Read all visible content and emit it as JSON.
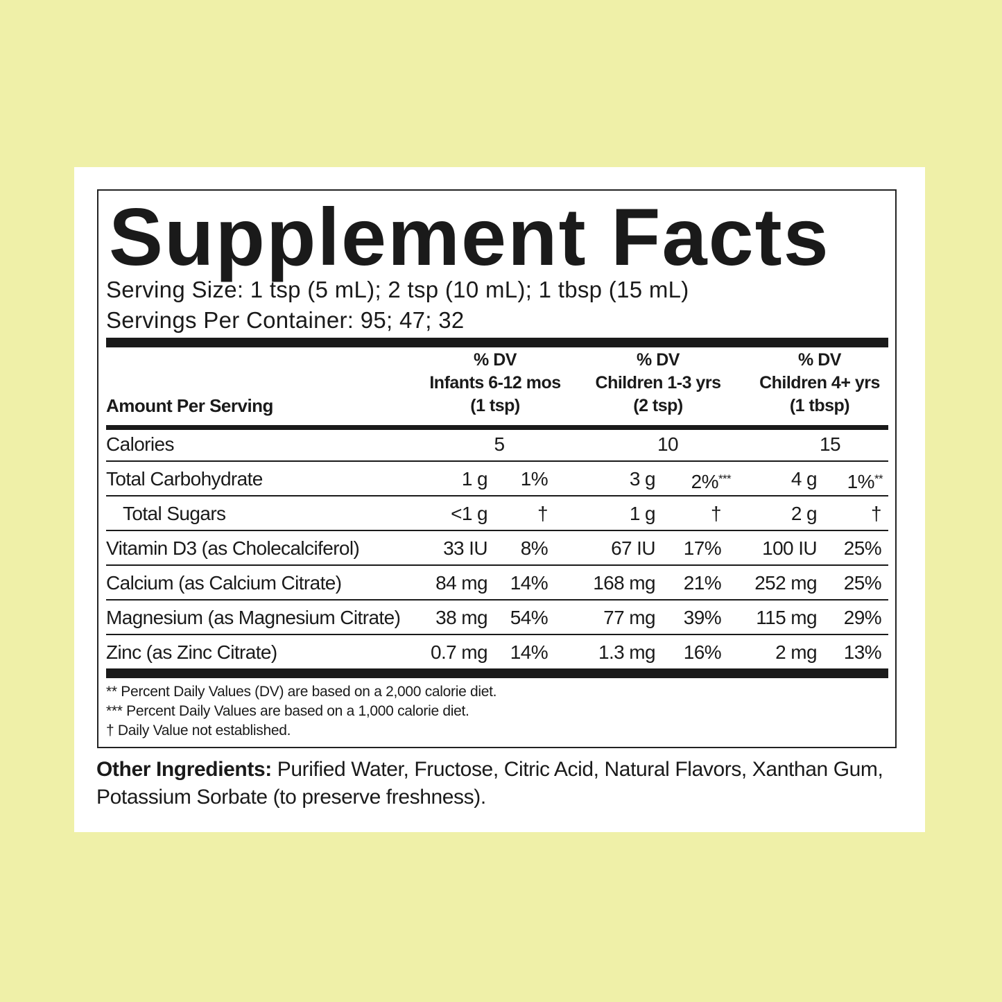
{
  "title": "Supplement Facts",
  "serving_size": "Serving Size: 1 tsp (5 mL); 2 tsp (10 mL); 1 tbsp (15 mL)",
  "servings_per_container": "Servings Per Container: 95; 47; 32",
  "header": {
    "amount_per_serving": "Amount Per Serving",
    "columns": [
      {
        "dv": "% DV",
        "group": "Infants 6-12 mos",
        "serving": "(1 tsp)"
      },
      {
        "dv": "% DV",
        "group": "Children 1-3 yrs",
        "serving": "(2 tsp)"
      },
      {
        "dv": "% DV",
        "group": "Children 4+ yrs",
        "serving": "(1 tbsp)"
      }
    ]
  },
  "calories": {
    "label": "Calories",
    "values": [
      "5",
      "10",
      "15"
    ]
  },
  "rows": [
    {
      "label": "Total Carbohydrate",
      "indent": false,
      "cells": [
        [
          "1 g",
          "1%",
          ""
        ],
        [
          "3 g",
          "2%",
          "***"
        ],
        [
          "4 g",
          "1%",
          "**"
        ]
      ]
    },
    {
      "label": "Total Sugars",
      "indent": true,
      "cells": [
        [
          "<1 g",
          "†",
          ""
        ],
        [
          "1 g",
          "†",
          ""
        ],
        [
          "2 g",
          "†",
          ""
        ]
      ]
    },
    {
      "label": "Vitamin D3 (as Cholecalciferol)",
      "indent": false,
      "cells": [
        [
          "33 IU",
          "8%",
          ""
        ],
        [
          "67 IU",
          "17%",
          ""
        ],
        [
          "100 IU",
          "25%",
          ""
        ]
      ]
    },
    {
      "label": "Calcium (as Calcium Citrate)",
      "indent": false,
      "cells": [
        [
          "84 mg",
          "14%",
          ""
        ],
        [
          "168 mg",
          "21%",
          ""
        ],
        [
          "252 mg",
          "25%",
          ""
        ]
      ]
    },
    {
      "label": "Magnesium (as Magnesium Citrate)",
      "indent": false,
      "cells": [
        [
          "38 mg",
          "54%",
          ""
        ],
        [
          "77 mg",
          "39%",
          ""
        ],
        [
          "115 mg",
          "29%",
          ""
        ]
      ]
    },
    {
      "label": "Zinc (as Zinc Citrate)",
      "indent": false,
      "cells": [
        [
          "0.7 mg",
          "14%",
          ""
        ],
        [
          "1.3 mg",
          "16%",
          ""
        ],
        [
          "2 mg",
          "13%",
          ""
        ]
      ]
    }
  ],
  "footnotes": [
    "** Percent Daily Values (DV) are based on a 2,000 calorie diet.",
    "*** Percent Daily Values are based on a 1,000 calorie diet.",
    "† Daily Value not established."
  ],
  "other_ingredients": {
    "label": "Other Ingredients:",
    "text_line1": " Purified Water, Fructose, Citric Acid, Natural Flavors, Xanthan Gum,",
    "text_line2": "Potassium Sorbate (to preserve freshness)."
  },
  "colors": {
    "background": "#eff0a8",
    "card": "#ffffff",
    "ink": "#1a1a1a"
  }
}
